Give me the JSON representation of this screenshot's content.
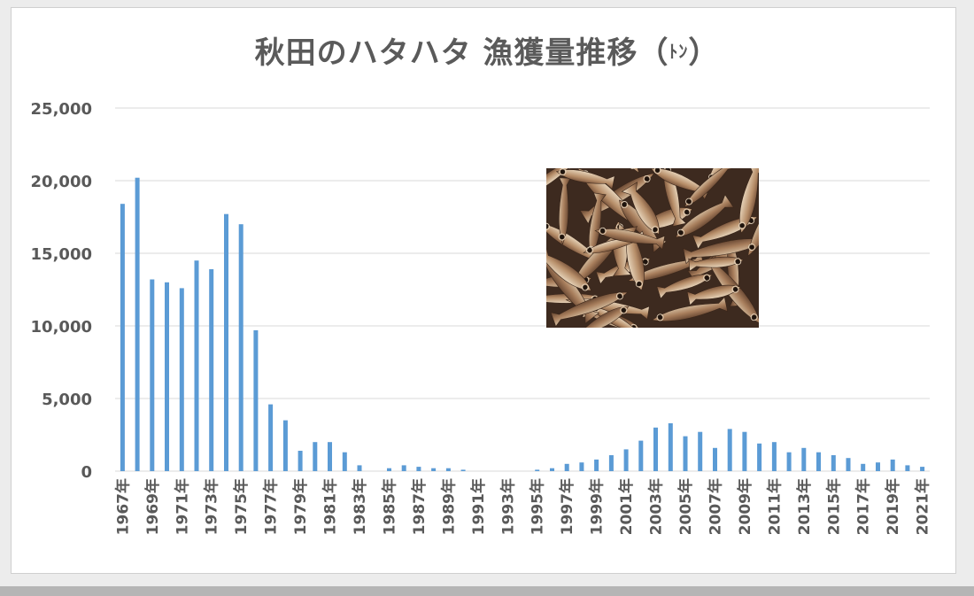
{
  "chart_data": {
    "type": "bar",
    "title_main": "秋田のハタハタ 漁獲量推移",
    "title_unit_open": "（",
    "title_unit": "ﾄﾝ",
    "title_unit_close": "）",
    "ylim": [
      0,
      25000
    ],
    "yticks": [
      "0",
      "5,000",
      "10,000",
      "15,000",
      "20,000",
      "25,000"
    ],
    "ytick_values": [
      0,
      5000,
      10000,
      15000,
      20000,
      25000
    ],
    "grid": true,
    "bar_color": "#5b9bd5",
    "categories": [
      "1967年",
      "1968年",
      "1969年",
      "1970年",
      "1971年",
      "1972年",
      "1973年",
      "1974年",
      "1975年",
      "1976年",
      "1977年",
      "1978年",
      "1979年",
      "1980年",
      "1981年",
      "1982年",
      "1983年",
      "1984年",
      "1985年",
      "1986年",
      "1987年",
      "1988年",
      "1989年",
      "1990年",
      "1991年",
      "1992年",
      "1993年",
      "1994年",
      "1995年",
      "1996年",
      "1997年",
      "1998年",
      "1999年",
      "2000年",
      "2001年",
      "2002年",
      "2003年",
      "2004年",
      "2005年",
      "2006年",
      "2007年",
      "2008年",
      "2009年",
      "2010年",
      "2011年",
      "2012年",
      "2013年",
      "2014年",
      "2015年",
      "2016年",
      "2017年",
      "2018年",
      "2019年",
      "2020年",
      "2021年"
    ],
    "xtick_labels": [
      "1967年",
      "1969年",
      "1971年",
      "1973年",
      "1975年",
      "1977年",
      "1979年",
      "1981年",
      "1983年",
      "1985年",
      "1987年",
      "1989年",
      "1991年",
      "1993年",
      "1995年",
      "1997年",
      "1999年",
      "2001年",
      "2003年",
      "2005年",
      "2007年",
      "2009年",
      "2011年",
      "2013年",
      "2015年",
      "2017年",
      "2019年",
      "2021年"
    ],
    "values": [
      18400,
      20200,
      13200,
      13000,
      12600,
      14500,
      13900,
      17700,
      17000,
      9700,
      4600,
      3500,
      1400,
      2000,
      2000,
      1300,
      400,
      0,
      200,
      400,
      300,
      200,
      200,
      100,
      0,
      0,
      0,
      0,
      100,
      200,
      500,
      600,
      800,
      1100,
      1500,
      2100,
      3000,
      3300,
      2400,
      2700,
      1600,
      2900,
      2700,
      1900,
      2000,
      1300,
      1600,
      1300,
      1100,
      900,
      500,
      600,
      800,
      400,
      300
    ]
  },
  "photo": {
    "icon": "hatahata-fish-photo-icon"
  }
}
